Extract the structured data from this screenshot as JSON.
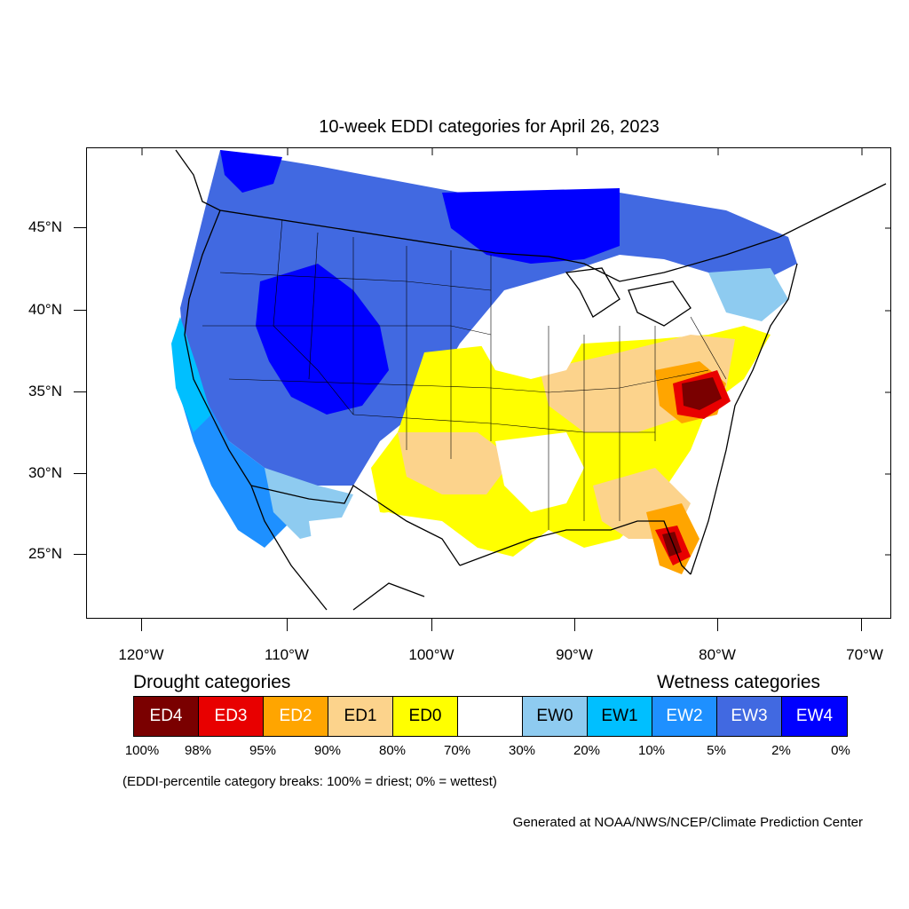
{
  "title": "10-week EDDI categories for April 26, 2023",
  "axes": {
    "lat_labels": [
      "45°N",
      "40°N",
      "35°N",
      "30°N",
      "25°N"
    ],
    "lon_labels": [
      "120°W",
      "110°W",
      "100°W",
      "90°W",
      "80°W",
      "70°W"
    ]
  },
  "legend": {
    "drought_heading": "Drought categories",
    "wetness_heading": "Wetness categories",
    "categories": [
      {
        "label": "ED4",
        "color": "#7a0000",
        "text_color": "#ffffff"
      },
      {
        "label": "ED3",
        "color": "#e80000",
        "text_color": "#ffffff"
      },
      {
        "label": "ED2",
        "color": "#ffa500",
        "text_color": "#ffffff"
      },
      {
        "label": "ED1",
        "color": "#fcd38c",
        "text_color": "#000000"
      },
      {
        "label": "ED0",
        "color": "#ffff00",
        "text_color": "#000000"
      },
      {
        "label": "",
        "color": "#ffffff",
        "text_color": "#000000"
      },
      {
        "label": "EW0",
        "color": "#8ecbf0",
        "text_color": "#000000"
      },
      {
        "label": "EW1",
        "color": "#00bfff",
        "text_color": "#000000"
      },
      {
        "label": "EW2",
        "color": "#1e90ff",
        "text_color": "#ffffff"
      },
      {
        "label": "EW3",
        "color": "#4169e1",
        "text_color": "#ffffff"
      },
      {
        "label": "EW4",
        "color": "#0000ff",
        "text_color": "#ffffff"
      }
    ],
    "percentiles": [
      "100%",
      "98%",
      "95%",
      "90%",
      "80%",
      "70%",
      "30%",
      "20%",
      "10%",
      "5%",
      "2%",
      "0%"
    ]
  },
  "note": "(EDDI-percentile category breaks: 100% = driest; 0% = wettest)",
  "credit": "Generated at NOAA/NWS/NCEP/Climate Prediction Center"
}
